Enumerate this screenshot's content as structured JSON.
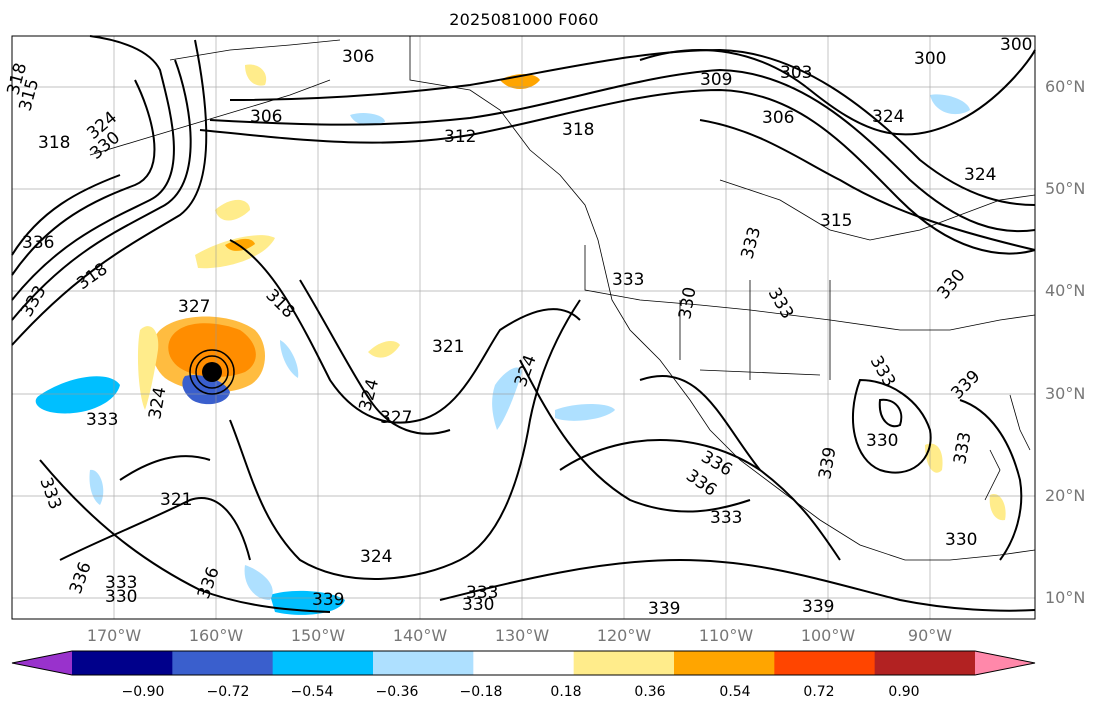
{
  "title": "2025081000 F060",
  "latitude_labels": [
    "60°N",
    "50°N",
    "40°N",
    "30°N",
    "20°N",
    "10°N"
  ],
  "longitude_labels": [
    "170°W",
    "160°W",
    "150°W",
    "140°W",
    "130°W",
    "120°W",
    "110°W",
    "100°W",
    "90°W"
  ],
  "contour_labels": [
    "306",
    "312",
    "318",
    "324",
    "330",
    "336",
    "333",
    "327",
    "321",
    "315",
    "309",
    "303",
    "300",
    "339"
  ],
  "colorbar": {
    "ticks": [
      "−0.90",
      "−0.72",
      "−0.54",
      "−0.36",
      "−0.18",
      "0.18",
      "0.36",
      "0.54",
      "0.72",
      "0.90"
    ],
    "colors": [
      "#9932cc",
      "#00008b",
      "#3a5fcd",
      "#00bfff",
      "#aee0ff",
      "#ffffff",
      "#ffec8b",
      "#ffa500",
      "#ff4500",
      "#b22222",
      "#ff88aa"
    ]
  },
  "storm_marker": {
    "lat": 32,
    "lon": -160
  }
}
